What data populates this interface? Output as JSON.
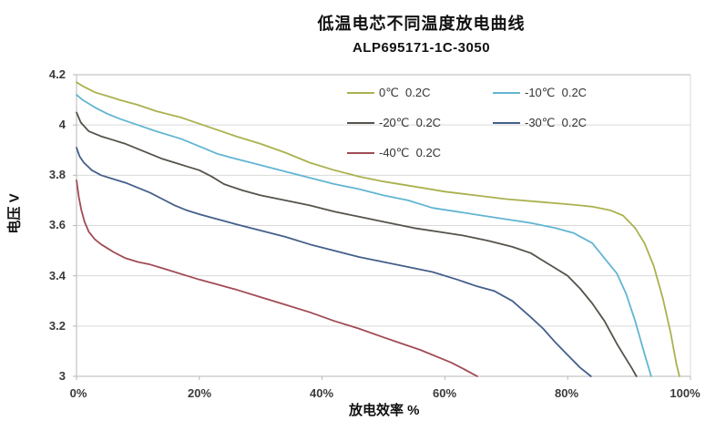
{
  "title": "低温电芯不同温度放电曲线",
  "subtitle": "ALP695171-1C-3050",
  "axes": {
    "y_label": "电压 V",
    "x_label": "放电效率 %",
    "y_ticks": [
      "4.2",
      "4",
      "3.8",
      "3.6",
      "3.4",
      "3.2",
      "3"
    ],
    "x_ticks": [
      "0%",
      "20%",
      "40%",
      "60%",
      "80%",
      "100%"
    ]
  },
  "colors": {
    "grid": "#d9d9d9",
    "axis_border": "#b7b7b7",
    "tick_text": "#3a3a3a"
  },
  "chart_data": {
    "type": "line",
    "title": "低温电芯不同温度放电曲线",
    "subtitle": "ALP695171-1C-3050",
    "xlabel": "放电效率 %",
    "ylabel": "电压 V",
    "xlim": [
      0,
      100
    ],
    "ylim": [
      3.0,
      4.2
    ],
    "x_tick_values": [
      0,
      20,
      40,
      60,
      80,
      100
    ],
    "y_tick_values": [
      4.2,
      4.0,
      3.8,
      3.6,
      3.4,
      3.2,
      3.0
    ],
    "grid": "horizontal",
    "legend_position": "top-inside",
    "series": [
      {
        "name": "0℃  0.2C",
        "color": "#abb14e",
        "points": [
          [
            0,
            4.17
          ],
          [
            1,
            4.155
          ],
          [
            3,
            4.13
          ],
          [
            5,
            4.115
          ],
          [
            7,
            4.1
          ],
          [
            10,
            4.08
          ],
          [
            13,
            4.055
          ],
          [
            17,
            4.03
          ],
          [
            20,
            4.005
          ],
          [
            23,
            3.98
          ],
          [
            26,
            3.955
          ],
          [
            30,
            3.925
          ],
          [
            34,
            3.89
          ],
          [
            38,
            3.85
          ],
          [
            42,
            3.82
          ],
          [
            46,
            3.795
          ],
          [
            50,
            3.775
          ],
          [
            55,
            3.755
          ],
          [
            60,
            3.735
          ],
          [
            65,
            3.72
          ],
          [
            70,
            3.705
          ],
          [
            75,
            3.695
          ],
          [
            80,
            3.685
          ],
          [
            84,
            3.675
          ],
          [
            87,
            3.66
          ],
          [
            89,
            3.64
          ],
          [
            91,
            3.59
          ],
          [
            92.5,
            3.53
          ],
          [
            94,
            3.44
          ],
          [
            95.5,
            3.31
          ],
          [
            96.8,
            3.17
          ],
          [
            97.7,
            3.05
          ],
          [
            98.2,
            3.0
          ]
        ]
      },
      {
        "name": "-10℃  0.2C",
        "color": "#62b5d2",
        "points": [
          [
            0,
            4.12
          ],
          [
            1,
            4.1
          ],
          [
            3,
            4.07
          ],
          [
            5,
            4.045
          ],
          [
            7,
            4.025
          ],
          [
            10,
            4.0
          ],
          [
            13,
            3.975
          ],
          [
            17,
            3.945
          ],
          [
            20,
            3.915
          ],
          [
            23,
            3.885
          ],
          [
            26,
            3.865
          ],
          [
            30,
            3.84
          ],
          [
            34,
            3.815
          ],
          [
            38,
            3.79
          ],
          [
            42,
            3.765
          ],
          [
            46,
            3.745
          ],
          [
            50,
            3.72
          ],
          [
            54,
            3.7
          ],
          [
            58,
            3.67
          ],
          [
            62,
            3.655
          ],
          [
            66,
            3.64
          ],
          [
            70,
            3.625
          ],
          [
            74,
            3.61
          ],
          [
            78,
            3.59
          ],
          [
            81,
            3.57
          ],
          [
            84,
            3.53
          ],
          [
            86,
            3.47
          ],
          [
            88,
            3.41
          ],
          [
            89.5,
            3.33
          ],
          [
            91,
            3.22
          ],
          [
            92.5,
            3.09
          ],
          [
            93.6,
            3.0
          ]
        ]
      },
      {
        "name": "-20℃  0.2C",
        "color": "#57534b",
        "points": [
          [
            0,
            4.05
          ],
          [
            0.7,
            4.01
          ],
          [
            2,
            3.975
          ],
          [
            4,
            3.955
          ],
          [
            6,
            3.94
          ],
          [
            8,
            3.925
          ],
          [
            10,
            3.905
          ],
          [
            12,
            3.885
          ],
          [
            14,
            3.865
          ],
          [
            16,
            3.85
          ],
          [
            18,
            3.835
          ],
          [
            20,
            3.82
          ],
          [
            22,
            3.795
          ],
          [
            24,
            3.765
          ],
          [
            27,
            3.74
          ],
          [
            30,
            3.72
          ],
          [
            34,
            3.7
          ],
          [
            38,
            3.68
          ],
          [
            42,
            3.655
          ],
          [
            46,
            3.635
          ],
          [
            50,
            3.615
          ],
          [
            55,
            3.59
          ],
          [
            59,
            3.575
          ],
          [
            63,
            3.56
          ],
          [
            67,
            3.54
          ],
          [
            71,
            3.515
          ],
          [
            74,
            3.49
          ],
          [
            76,
            3.46
          ],
          [
            78,
            3.43
          ],
          [
            80,
            3.4
          ],
          [
            82,
            3.35
          ],
          [
            84,
            3.29
          ],
          [
            86,
            3.22
          ],
          [
            88,
            3.13
          ],
          [
            89.5,
            3.07
          ],
          [
            90.5,
            3.03
          ],
          [
            91.2,
            3.0
          ]
        ]
      },
      {
        "name": "-30℃  0.2C",
        "color": "#44608a",
        "points": [
          [
            0,
            3.91
          ],
          [
            0.5,
            3.875
          ],
          [
            1.2,
            3.85
          ],
          [
            2.5,
            3.82
          ],
          [
            4,
            3.8
          ],
          [
            6,
            3.785
          ],
          [
            8,
            3.77
          ],
          [
            10,
            3.75
          ],
          [
            12,
            3.73
          ],
          [
            14,
            3.705
          ],
          [
            16,
            3.68
          ],
          [
            18,
            3.66
          ],
          [
            20,
            3.645
          ],
          [
            23,
            3.625
          ],
          [
            26,
            3.605
          ],
          [
            30,
            3.58
          ],
          [
            34,
            3.555
          ],
          [
            38,
            3.525
          ],
          [
            42,
            3.5
          ],
          [
            46,
            3.475
          ],
          [
            50,
            3.455
          ],
          [
            54,
            3.435
          ],
          [
            58,
            3.415
          ],
          [
            62,
            3.385
          ],
          [
            65,
            3.36
          ],
          [
            68,
            3.34
          ],
          [
            71,
            3.3
          ],
          [
            74,
            3.235
          ],
          [
            76,
            3.19
          ],
          [
            78,
            3.135
          ],
          [
            80,
            3.085
          ],
          [
            82,
            3.035
          ],
          [
            83.8,
            3.0
          ]
        ]
      },
      {
        "name": "-40℃  0.2C",
        "color": "#a14b55",
        "points": [
          [
            0,
            3.78
          ],
          [
            0.4,
            3.71
          ],
          [
            0.8,
            3.66
          ],
          [
            1.3,
            3.615
          ],
          [
            2,
            3.575
          ],
          [
            3,
            3.545
          ],
          [
            4,
            3.525
          ],
          [
            5,
            3.51
          ],
          [
            6,
            3.495
          ],
          [
            8,
            3.47
          ],
          [
            10,
            3.455
          ],
          [
            12,
            3.445
          ],
          [
            14,
            3.43
          ],
          [
            16,
            3.415
          ],
          [
            18,
            3.4
          ],
          [
            20,
            3.385
          ],
          [
            23,
            3.365
          ],
          [
            26,
            3.345
          ],
          [
            30,
            3.315
          ],
          [
            34,
            3.285
          ],
          [
            38,
            3.255
          ],
          [
            42,
            3.22
          ],
          [
            46,
            3.19
          ],
          [
            50,
            3.155
          ],
          [
            53,
            3.13
          ],
          [
            56,
            3.105
          ],
          [
            59,
            3.075
          ],
          [
            61,
            3.055
          ],
          [
            63,
            3.03
          ],
          [
            64.5,
            3.01
          ],
          [
            65.3,
            3.0
          ]
        ]
      }
    ]
  }
}
